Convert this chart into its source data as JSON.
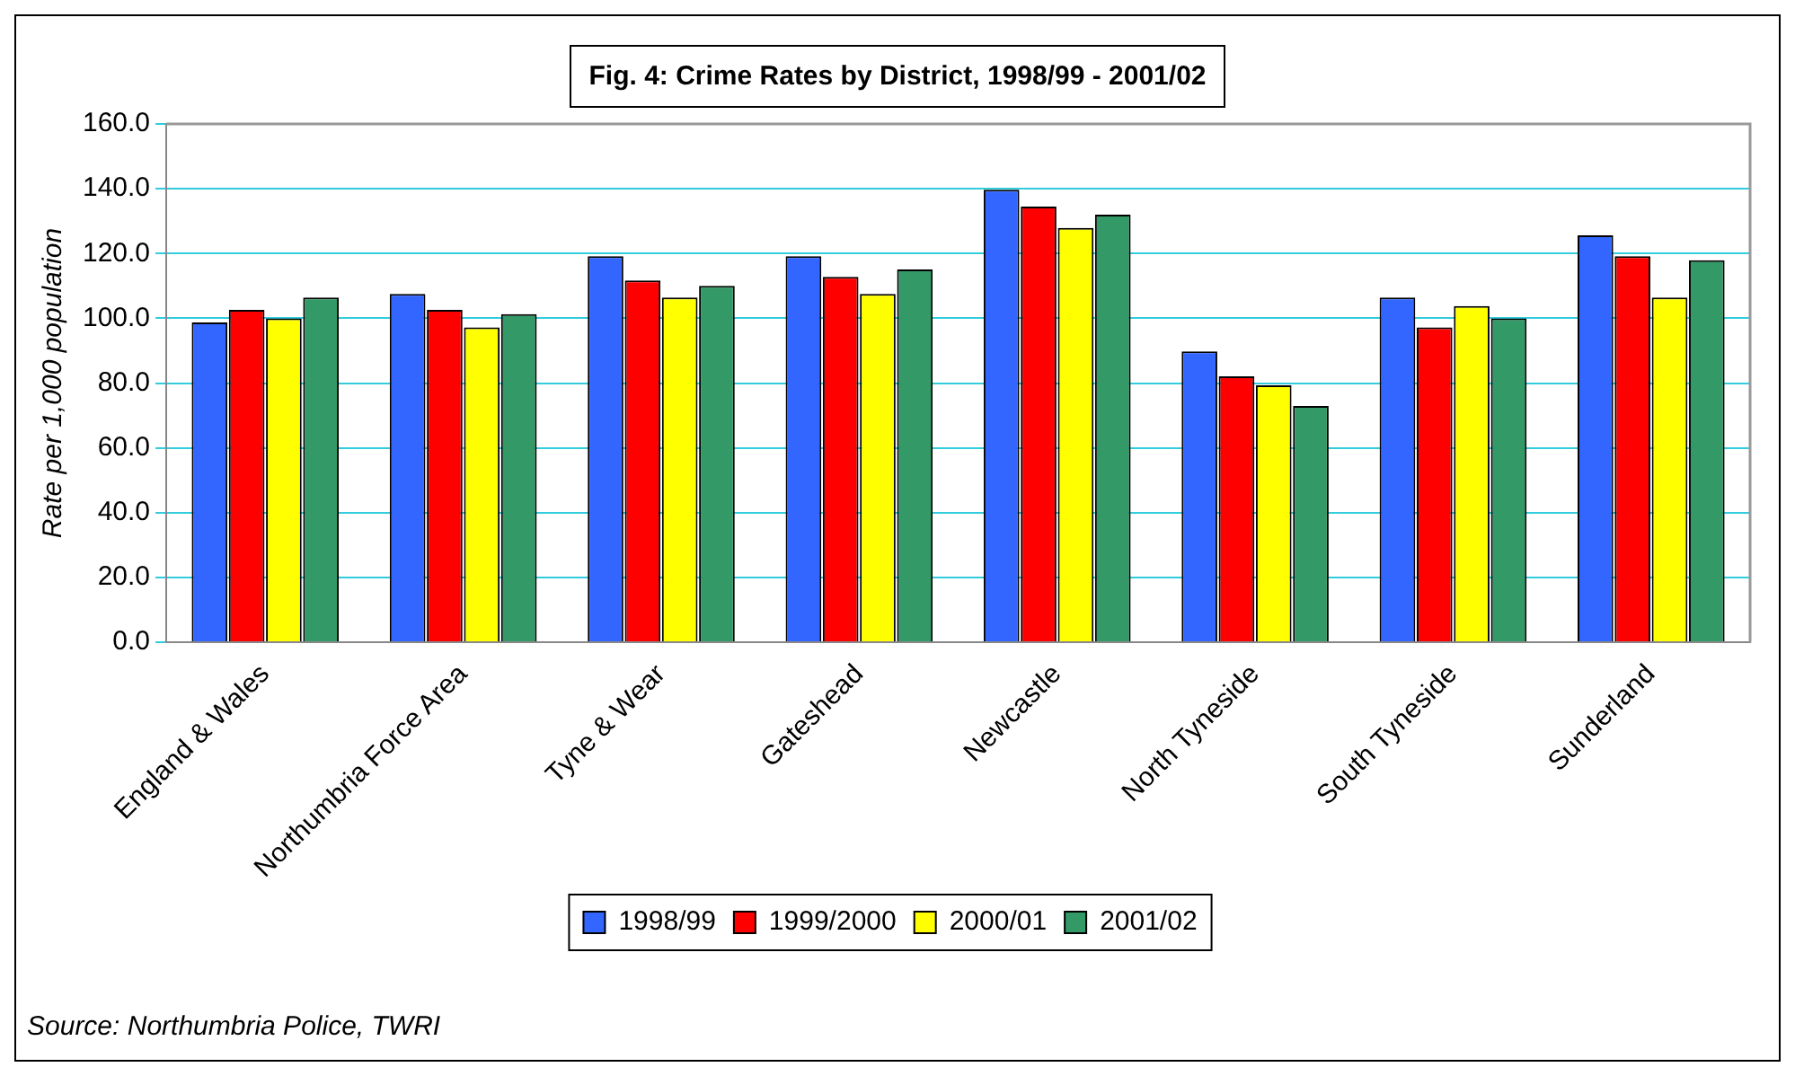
{
  "chart_data": {
    "type": "bar",
    "title": "Fig. 4: Crime Rates by District, 1998/99 - 2001/02",
    "ylabel": "Rate per 1,000 population",
    "annotations": [
      "Source: Northumbria Police, TWRI"
    ],
    "categories": [
      "England & Wales",
      "Northumbria Force Area",
      "Tyne & Wear",
      "Gateshead",
      "Newcastle",
      "North Tyneside",
      "South Tyneside",
      "Sunderland"
    ],
    "series": [
      {
        "name": "1998/99",
        "color": "#3366ff",
        "values": [
          98.7,
          107.5,
          119.2,
          119.2,
          139.7,
          89.8,
          106.4,
          125.6
        ]
      },
      {
        "name": "1999/2000",
        "color": "#ff0000",
        "values": [
          102.6,
          102.6,
          111.7,
          112.8,
          134.5,
          82.1,
          97.2,
          119.2
        ]
      },
      {
        "name": "2000/01",
        "color": "#ffff00",
        "values": [
          100.0,
          97.2,
          106.4,
          107.5,
          127.9,
          79.3,
          103.8,
          106.4
        ]
      },
      {
        "name": "2001/02",
        "color": "#339966",
        "values": [
          106.4,
          101.3,
          110.0,
          115.1,
          132.0,
          72.9,
          100.0,
          117.9
        ]
      }
    ],
    "ylim": [
      0,
      160
    ],
    "yticks": [
      {
        "value": 0,
        "label": "0.0"
      },
      {
        "value": 20,
        "label": "20.0"
      },
      {
        "value": 40,
        "label": "40.0"
      },
      {
        "value": 60,
        "label": "60.0"
      },
      {
        "value": 80,
        "label": "80.0"
      },
      {
        "value": 100,
        "label": "100.0"
      },
      {
        "value": 120,
        "label": "120.0"
      },
      {
        "value": 140,
        "label": "140.0"
      },
      {
        "value": 160,
        "label": "160.0"
      }
    ],
    "grid": "y",
    "legend": "bottom"
  }
}
